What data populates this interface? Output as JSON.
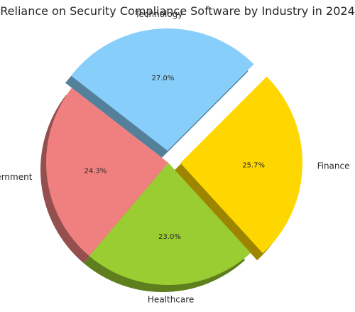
{
  "chart_data": {
    "type": "pie",
    "title": "Reliance on Security Compliance Software by Industry in 2024",
    "categories": [
      "Technology",
      "Government",
      "Healthcare",
      "Finance"
    ],
    "values": [
      27.0,
      24.3,
      23.0,
      25.7
    ],
    "percent_labels": [
      "27.0%",
      "24.3%",
      "23.0%",
      "25.7%"
    ],
    "colors": [
      "#87CEFA",
      "#F08080",
      "#9ACD32",
      "#FFD700"
    ],
    "exploded": [
      true,
      false,
      false,
      true
    ],
    "start_angle_deg": 45,
    "direction": "counterclockwise",
    "shadow": true,
    "legend": "none"
  }
}
